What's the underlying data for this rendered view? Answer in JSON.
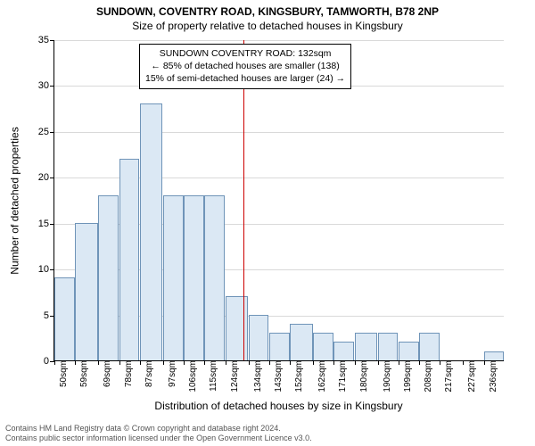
{
  "chart": {
    "type": "histogram",
    "title_main": "SUNDOWN, COVENTRY ROAD, KINGSBURY, TAMWORTH, B78 2NP",
    "title_sub": "Size of property relative to detached houses in Kingsbury",
    "title_fontsize": 12,
    "ylabel": "Number of detached properties",
    "xlabel": "Distribution of detached houses by size in Kingsbury",
    "label_fontsize": 12,
    "tick_fontsize": 11,
    "background_color": "#ffffff",
    "grid_color": "#d9d9d9",
    "axis_color": "#000000",
    "bar_fill": "#dbe8f4",
    "bar_stroke": "#6f94b8",
    "vline_color": "#cc0000",
    "ylim": [
      0,
      35
    ],
    "ytick_step": 5,
    "bins": [
      {
        "label": "50sqm",
        "start": 50,
        "value": 9
      },
      {
        "label": "59sqm",
        "start": 59,
        "value": 15
      },
      {
        "label": "69sqm",
        "start": 69,
        "value": 18
      },
      {
        "label": "78sqm",
        "start": 78,
        "value": 22
      },
      {
        "label": "87sqm",
        "start": 87,
        "value": 28
      },
      {
        "label": "97sqm",
        "start": 97,
        "value": 18
      },
      {
        "label": "106sqm",
        "start": 106,
        "value": 18
      },
      {
        "label": "115sqm",
        "start": 115,
        "value": 18
      },
      {
        "label": "124sqm",
        "start": 124,
        "value": 7
      },
      {
        "label": "134sqm",
        "start": 134,
        "value": 5
      },
      {
        "label": "143sqm",
        "start": 143,
        "value": 3
      },
      {
        "label": "152sqm",
        "start": 152,
        "value": 4
      },
      {
        "label": "162sqm",
        "start": 162,
        "value": 3
      },
      {
        "label": "171sqm",
        "start": 171,
        "value": 2
      },
      {
        "label": "180sqm",
        "start": 180,
        "value": 3
      },
      {
        "label": "190sqm",
        "start": 190,
        "value": 3
      },
      {
        "label": "199sqm",
        "start": 199,
        "value": 2
      },
      {
        "label": "208sqm",
        "start": 208,
        "value": 3
      },
      {
        "label": "217sqm",
        "start": 217,
        "value": 0
      },
      {
        "label": "227sqm",
        "start": 227,
        "value": 0
      },
      {
        "label": "236sqm",
        "start": 236,
        "value": 1
      }
    ],
    "x_extent_end": 245,
    "marker_x": 132,
    "annotation": {
      "line1": "SUNDOWN COVENTRY ROAD: 132sqm",
      "line2": "← 85% of detached houses are smaller (138)",
      "line3": "15% of semi-detached houses are larger (24) →",
      "box_border": "#000000",
      "box_bg": "#ffffff",
      "fontsize": 10.5
    }
  },
  "footer": {
    "line1": "Contains HM Land Registry data © Crown copyright and database right 2024.",
    "line2": "Contains public sector information licensed under the Open Government Licence v3.0.",
    "color": "#555555",
    "fontsize": 9
  }
}
